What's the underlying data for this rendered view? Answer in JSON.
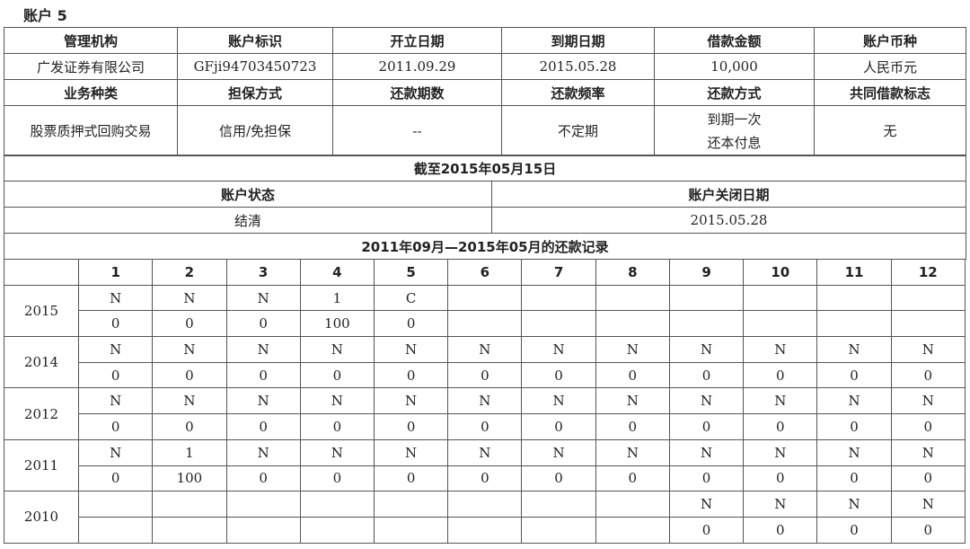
{
  "account_title": "账户 5",
  "basic": {
    "headers1": [
      "管理机构",
      "账户标识",
      "开立日期",
      "到期日期",
      "借款金额",
      "账户币种"
    ],
    "values1": [
      "广发证券有限公司",
      "GFji94703450723",
      "2011.09.29",
      "2015.05.28",
      "10,000",
      "人民币元"
    ],
    "headers2": [
      "业务种类",
      "担保方式",
      "还款期数",
      "还款频率",
      "还款方式",
      "共同借款标志"
    ],
    "values2": [
      "股票质押式回购交易",
      "信用/免担保",
      "--",
      "不定期",
      "到期一次还本付息",
      "无"
    ]
  },
  "status_section": {
    "as_of": "截至2015年05月15日",
    "status_label": "账户状态",
    "close_date_label": "账户关闭日期",
    "status_value": "结清",
    "close_date_value": "2015.05.28"
  },
  "repayment": {
    "title": "2011年09月—2015年05月的还款记录",
    "months": [
      "1",
      "2",
      "3",
      "4",
      "5",
      "6",
      "7",
      "8",
      "9",
      "10",
      "11",
      "12"
    ],
    "records": [
      {
        "year": "2015",
        "status": [
          "N",
          "N",
          "N",
          "1",
          "C",
          "",
          "",
          "",
          "",
          "",
          "",
          ""
        ],
        "amount": [
          "0",
          "0",
          "0",
          "100",
          "0",
          "",
          "",
          "",
          "",
          "",
          "",
          ""
        ]
      },
      {
        "year": "2014",
        "status": [
          "N",
          "N",
          "N",
          "N",
          "N",
          "N",
          "N",
          "N",
          "N",
          "N",
          "N",
          "N"
        ],
        "amount": [
          "0",
          "0",
          "0",
          "0",
          "0",
          "0",
          "0",
          "0",
          "0",
          "0",
          "0",
          "0"
        ]
      },
      {
        "year": "2012",
        "status": [
          "N",
          "N",
          "N",
          "N",
          "N",
          "N",
          "N",
          "N",
          "N",
          "N",
          "N",
          "N"
        ],
        "amount": [
          "0",
          "0",
          "0",
          "0",
          "0",
          "0",
          "0",
          "0",
          "0",
          "0",
          "0",
          "0"
        ]
      },
      {
        "year": "2011",
        "status": [
          "N",
          "1",
          "N",
          "N",
          "N",
          "N",
          "N",
          "N",
          "N",
          "N",
          "N",
          "N"
        ],
        "amount": [
          "0",
          "100",
          "0",
          "0",
          "0",
          "0",
          "0",
          "0",
          "0",
          "0",
          "0",
          "0"
        ]
      },
      {
        "year": "2010",
        "status": [
          "",
          "",
          "",
          "",
          "",
          "",
          "",
          "",
          "N",
          "N",
          "N",
          "N"
        ],
        "amount": [
          "",
          "",
          "",
          "",
          "",
          "",
          "",
          "",
          "0",
          "0",
          "0",
          "0"
        ]
      }
    ]
  }
}
